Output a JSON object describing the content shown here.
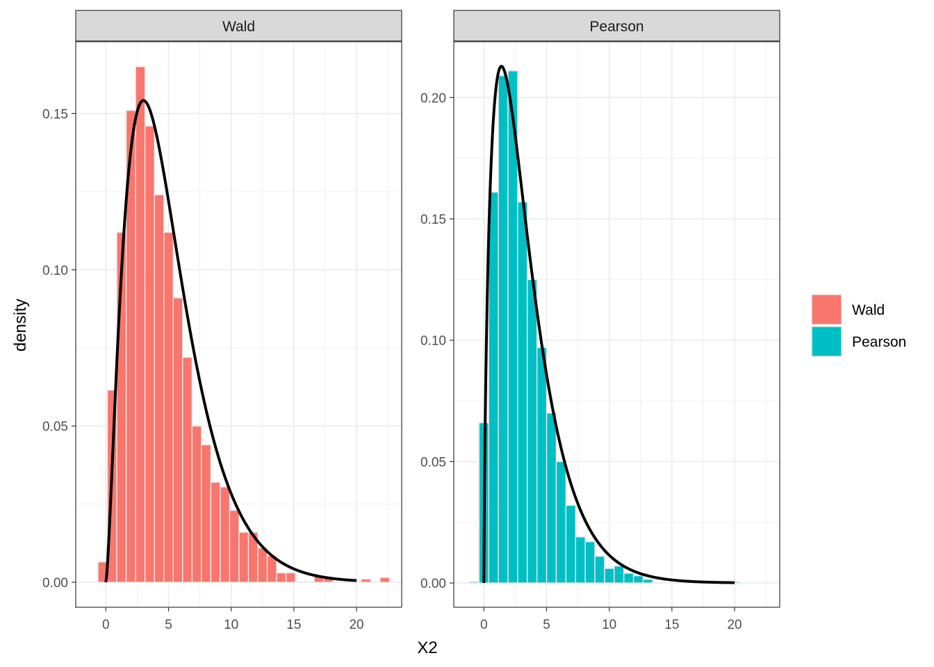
{
  "chart_data": {
    "type": "bar",
    "xlabel": "X2",
    "ylabel": "density",
    "grid": true,
    "legend_placement": "right",
    "colors": {
      "Wald": "#F8766D",
      "Pearson": "#00BFC4",
      "bar_outline": "#E8E8E8",
      "curve": "#000000"
    },
    "legend": [
      {
        "label": "Wald",
        "color": "#F8766D"
      },
      {
        "label": "Pearson",
        "color": "#00BFC4"
      }
    ],
    "x_ticks": [
      0,
      5,
      10,
      15,
      20
    ],
    "panels": [
      {
        "strip": "Wald",
        "series": "Wald",
        "xlim": [
          -2.4,
          23.6
        ],
        "ylim": [
          -0.008,
          0.173
        ],
        "y_ticks": [
          0.0,
          0.05,
          0.1,
          0.15
        ],
        "y_tick_labels": [
          "0.00",
          "0.05",
          "0.10",
          "0.15"
        ],
        "bin_width": 0.75,
        "bins": [
          {
            "x": -0.25,
            "y": 0.0065
          },
          {
            "x": 0.5,
            "y": 0.0615
          },
          {
            "x": 1.25,
            "y": 0.112
          },
          {
            "x": 2.0,
            "y": 0.151
          },
          {
            "x": 2.75,
            "y": 0.165
          },
          {
            "x": 3.5,
            "y": 0.146
          },
          {
            "x": 4.25,
            "y": 0.124
          },
          {
            "x": 5.0,
            "y": 0.112
          },
          {
            "x": 5.75,
            "y": 0.091
          },
          {
            "x": 6.5,
            "y": 0.072
          },
          {
            "x": 7.25,
            "y": 0.05
          },
          {
            "x": 8.0,
            "y": 0.044
          },
          {
            "x": 8.75,
            "y": 0.032
          },
          {
            "x": 9.5,
            "y": 0.0305
          },
          {
            "x": 10.25,
            "y": 0.023
          },
          {
            "x": 11.0,
            "y": 0.016
          },
          {
            "x": 11.75,
            "y": 0.016
          },
          {
            "x": 12.5,
            "y": 0.011
          },
          {
            "x": 13.25,
            "y": 0.0085
          },
          {
            "x": 14.0,
            "y": 0.003
          },
          {
            "x": 14.75,
            "y": 0.003
          },
          {
            "x": 15.5,
            "y": 0.0
          },
          {
            "x": 16.25,
            "y": 0.0
          },
          {
            "x": 17.0,
            "y": 0.002
          },
          {
            "x": 17.75,
            "y": 0.0015
          },
          {
            "x": 18.5,
            "y": 0.0
          },
          {
            "x": 19.25,
            "y": 0.0
          },
          {
            "x": 20.0,
            "y": 0.0
          },
          {
            "x": 20.75,
            "y": 0.001
          },
          {
            "x": 21.5,
            "y": 0.0
          },
          {
            "x": 22.25,
            "y": 0.0015
          }
        ],
        "curve": {
          "distribution": "chi-square",
          "df": 5,
          "x_range": [
            0,
            20
          ]
        }
      },
      {
        "strip": "Pearson",
        "series": "Pearson",
        "xlim": [
          -2.4,
          23.6
        ],
        "ylim": [
          -0.01,
          0.223
        ],
        "y_ticks": [
          0.0,
          0.05,
          0.1,
          0.15,
          0.2
        ],
        "y_tick_labels": [
          "0.00",
          "0.05",
          "0.10",
          "0.15",
          "0.20"
        ],
        "bin_width": 0.77,
        "bins": [
          {
            "x": -0.77,
            "y": 0.0005
          },
          {
            "x": 0.0,
            "y": 0.066
          },
          {
            "x": 0.77,
            "y": 0.161
          },
          {
            "x": 1.54,
            "y": 0.209
          },
          {
            "x": 2.31,
            "y": 0.211
          },
          {
            "x": 3.08,
            "y": 0.157
          },
          {
            "x": 3.85,
            "y": 0.125
          },
          {
            "x": 4.62,
            "y": 0.097
          },
          {
            "x": 5.39,
            "y": 0.07
          },
          {
            "x": 6.16,
            "y": 0.05
          },
          {
            "x": 6.93,
            "y": 0.032
          },
          {
            "x": 7.7,
            "y": 0.019
          },
          {
            "x": 8.47,
            "y": 0.017
          },
          {
            "x": 9.24,
            "y": 0.011
          },
          {
            "x": 10.01,
            "y": 0.006
          },
          {
            "x": 10.78,
            "y": 0.007
          },
          {
            "x": 11.55,
            "y": 0.004
          },
          {
            "x": 12.32,
            "y": 0.003
          },
          {
            "x": 13.09,
            "y": 0.0015
          },
          {
            "x": 13.86,
            "y": 0.0
          },
          {
            "x": 20.02,
            "y": 0.0005
          }
        ],
        "curve": {
          "distribution": "chi-square",
          "df": 3.4,
          "x_range": [
            0,
            20
          ]
        }
      }
    ]
  }
}
